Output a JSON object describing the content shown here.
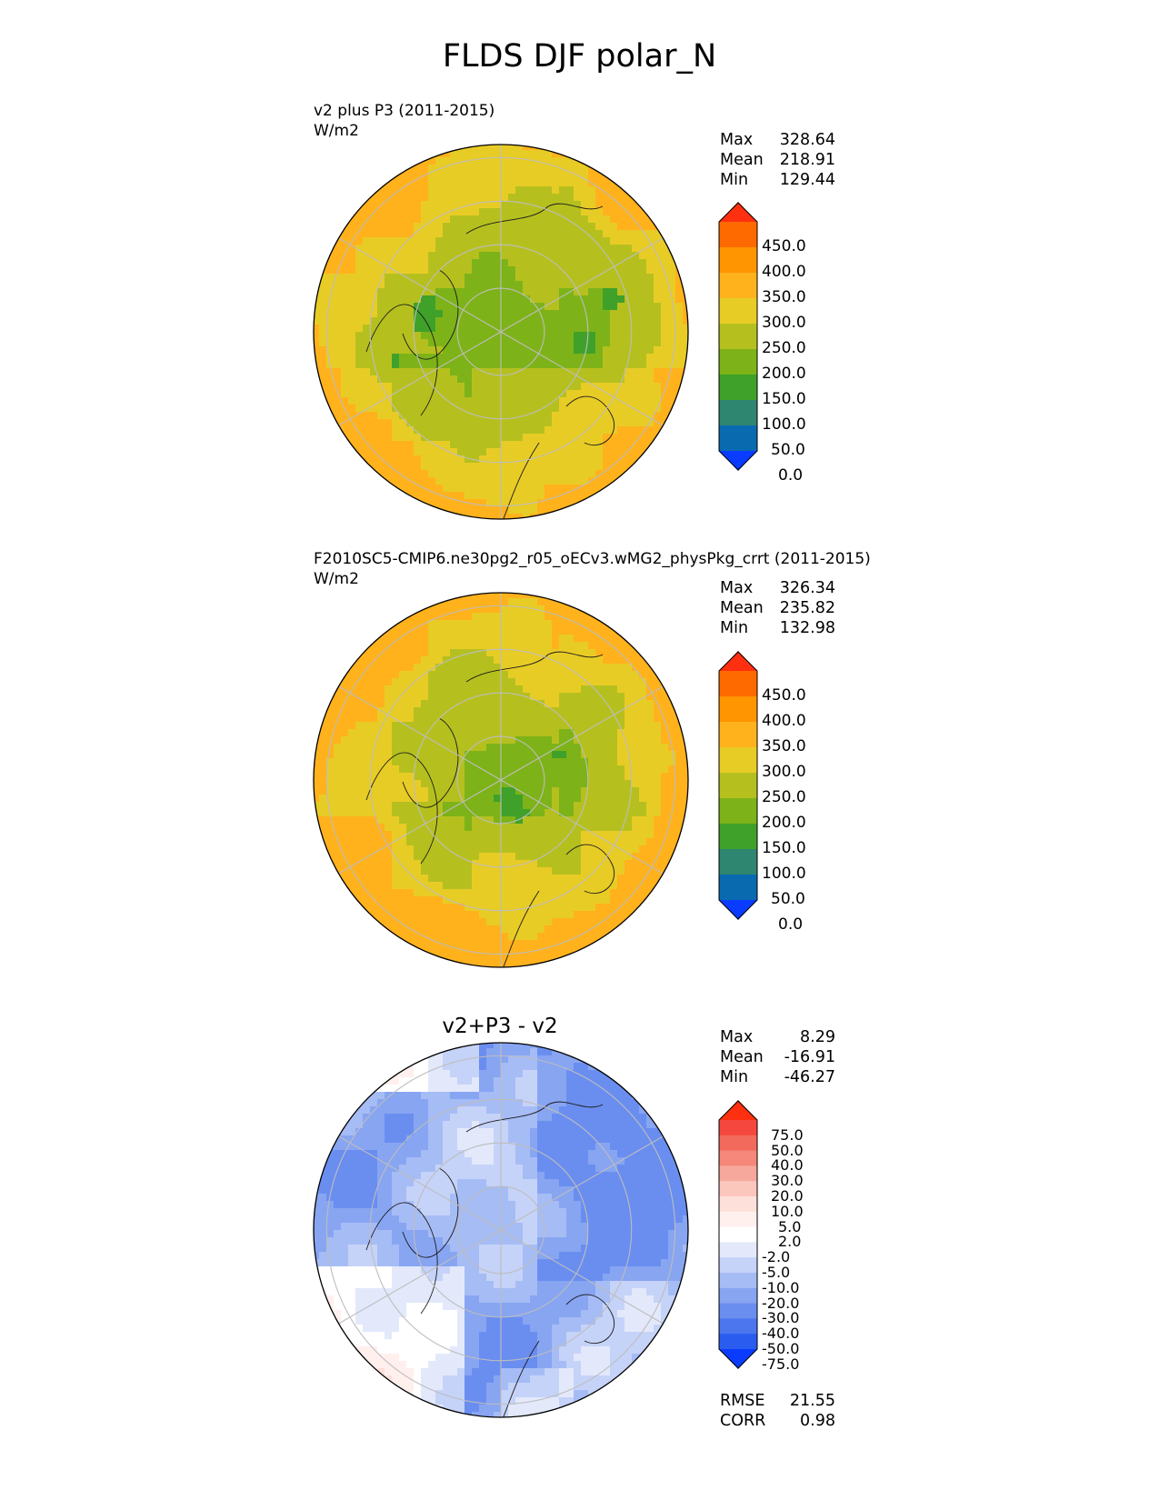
{
  "title": "FLDS DJF polar_N",
  "panels": [
    {
      "name": "test",
      "label": "v2 plus P3 (2011-2015)",
      "units": "W/m2",
      "stats": [
        {
          "label": "Max",
          "value": "328.64"
        },
        {
          "label": "Mean",
          "value": "218.91"
        },
        {
          "label": "Min",
          "value": "129.44"
        }
      ]
    },
    {
      "name": "reference",
      "label": "F2010SC5-CMIP6.ne30pg2_r05_oECv3.wMG2_physPkg_crrt (2011-2015)",
      "units": "W/m2",
      "stats": [
        {
          "label": "Max",
          "value": "326.34"
        },
        {
          "label": "Mean",
          "value": "235.82"
        },
        {
          "label": "Min",
          "value": "132.98"
        }
      ]
    },
    {
      "name": "difference",
      "title": "v2+P3 - v2",
      "stats": [
        {
          "label": "Max",
          "value": "8.29"
        },
        {
          "label": "Mean",
          "value": "-16.91"
        },
        {
          "label": "Min",
          "value": "-46.27"
        }
      ],
      "extra_stats": [
        {
          "label": "RMSE",
          "value": "21.55"
        },
        {
          "label": "CORR",
          "value": "0.98"
        }
      ]
    }
  ],
  "chart_data": [
    {
      "type": "heatmap",
      "projection": "north polar stereographic",
      "title": "v2 plus P3 (2011-2015)",
      "units": "W/m2",
      "colorbar": {
        "ticks": [
          "450.0",
          "400.0",
          "350.0",
          "300.0",
          "250.0",
          "200.0",
          "150.0",
          "100.0",
          "50.0",
          "0.0"
        ],
        "colors": [
          "#ff3010",
          "#ff6a00",
          "#ff9500",
          "#ffb21c",
          "#e8cc26",
          "#b5c01f",
          "#7db318",
          "#3fa12a",
          "#2e8570",
          "#0a6ab0",
          "#0a3cff"
        ]
      },
      "max": 328.64,
      "mean": 218.91,
      "min": 129.44
    },
    {
      "type": "heatmap",
      "projection": "north polar stereographic",
      "title": "F2010SC5-CMIP6.ne30pg2_r05_oECv3.wMG2_physPkg_crrt (2011-2015)",
      "units": "W/m2",
      "colorbar": {
        "ticks": [
          "450.0",
          "400.0",
          "350.0",
          "300.0",
          "250.0",
          "200.0",
          "150.0",
          "100.0",
          "50.0",
          "0.0"
        ],
        "colors": [
          "#ff3010",
          "#ff6a00",
          "#ff9500",
          "#ffb21c",
          "#e8cc26",
          "#b5c01f",
          "#7db318",
          "#3fa12a",
          "#2e8570",
          "#0a6ab0",
          "#0a3cff"
        ]
      },
      "max": 326.34,
      "mean": 235.82,
      "min": 132.98
    },
    {
      "type": "heatmap",
      "projection": "north polar stereographic",
      "title": "v2+P3 - v2",
      "colorbar": {
        "ticks": [
          "75.0",
          "50.0",
          "40.0",
          "30.0",
          "20.0",
          "10.0",
          "5.0",
          "2.0",
          "-2.0",
          "-5.0",
          "-10.0",
          "-20.0",
          "-30.0",
          "-40.0",
          "-50.0",
          "-75.0"
        ],
        "colors": [
          "#ff3010",
          "#f5473d",
          "#f26a5c",
          "#f5887a",
          "#f7a89c",
          "#fbc7bd",
          "#fde0da",
          "#fff0ee",
          "#ffffff",
          "#e3e9fb",
          "#c6d3f8",
          "#a6bcf5",
          "#88a5f2",
          "#6a8ef0",
          "#4b76ee",
          "#2a5cf0",
          "#0a3cff"
        ]
      },
      "max": 8.29,
      "mean": -16.91,
      "min": -46.27,
      "rmse": 21.55,
      "corr": 0.98
    }
  ]
}
